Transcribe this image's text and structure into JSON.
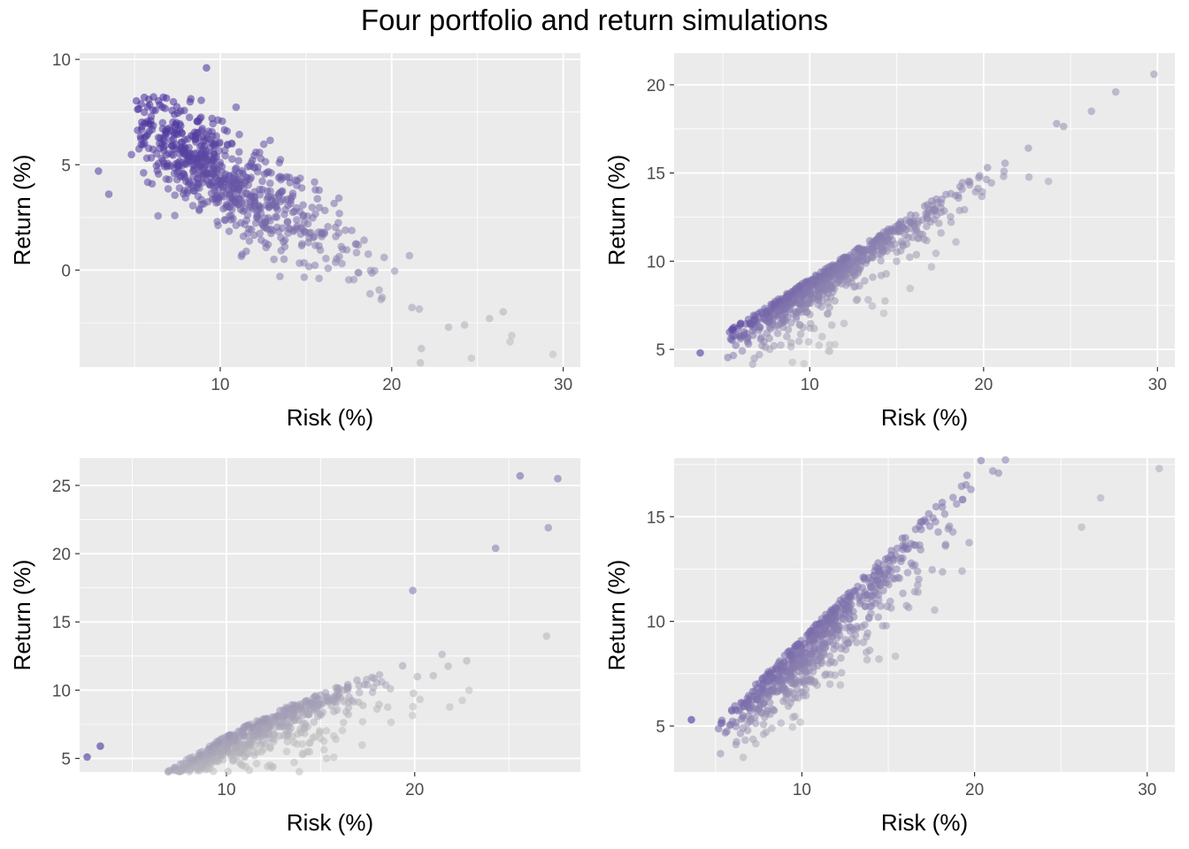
{
  "title": "Four portfolio and return simulations",
  "chart_data": [
    {
      "type": "scatter",
      "xlabel": "Risk (%)",
      "ylabel": "Return (%)",
      "xlim": [
        1.8,
        31.0
      ],
      "ylim": [
        -4.6,
        10.3
      ],
      "xticks": [
        10,
        20,
        30
      ],
      "yticks": [
        0,
        5,
        10
      ],
      "shape": "negative",
      "color_low": "#bdbdbd",
      "color_high": "#3a1f99",
      "n_points": 700,
      "extremes": [
        [
          2.9,
          4.7
        ],
        [
          3.5,
          3.6
        ],
        [
          29.4,
          -4.0
        ],
        [
          27.0,
          -3.1
        ],
        [
          26.9,
          -3.4
        ],
        [
          25.7,
          -2.3
        ],
        [
          9.2,
          9.6
        ]
      ]
    },
    {
      "type": "scatter",
      "xlabel": "Risk (%)",
      "ylabel": "Return (%)",
      "xlim": [
        2.2,
        31.0
      ],
      "ylim": [
        4.0,
        21.8
      ],
      "xticks": [
        10,
        20,
        30
      ],
      "yticks": [
        5,
        10,
        15,
        20
      ],
      "shape": "linear",
      "color_low": "#bdbdbd",
      "color_high": "#3a1f99",
      "n_points": 700,
      "extremes": [
        [
          3.7,
          4.8
        ],
        [
          29.8,
          20.6
        ],
        [
          27.6,
          19.6
        ],
        [
          26.2,
          18.5
        ],
        [
          24.2,
          17.8
        ],
        [
          7.1,
          4.7
        ]
      ]
    },
    {
      "type": "scatter",
      "xlabel": "Risk (%)",
      "ylabel": "Return (%)",
      "xlim": [
        2.2,
        28.8
      ],
      "ylim": [
        4.0,
        27.0
      ],
      "xticks": [
        10,
        20
      ],
      "yticks": [
        5,
        10,
        15,
        20,
        25
      ],
      "shape": "concave",
      "color_low": "#bdbdbd",
      "color_high": "#3a1f99",
      "n_points": 700,
      "extremes": [
        [
          2.6,
          5.1
        ],
        [
          3.3,
          5.9
        ],
        [
          25.6,
          25.7
        ],
        [
          27.6,
          25.5
        ],
        [
          27.1,
          21.9
        ],
        [
          24.3,
          20.4
        ],
        [
          19.9,
          17.3
        ]
      ]
    },
    {
      "type": "scatter",
      "xlabel": "Risk (%)",
      "ylabel": "Return (%)",
      "xlim": [
        2.6,
        31.6
      ],
      "ylim": [
        2.8,
        17.8
      ],
      "xticks": [
        10,
        20,
        30
      ],
      "yticks": [
        5,
        10,
        15
      ],
      "shape": "fan",
      "color_low": "#bdbdbd",
      "color_high": "#3a1f99",
      "n_points": 700,
      "extremes": [
        [
          30.7,
          17.3
        ],
        [
          6.6,
          3.5
        ],
        [
          3.6,
          5.3
        ],
        [
          27.3,
          15.9
        ],
        [
          26.2,
          14.5
        ]
      ]
    }
  ]
}
